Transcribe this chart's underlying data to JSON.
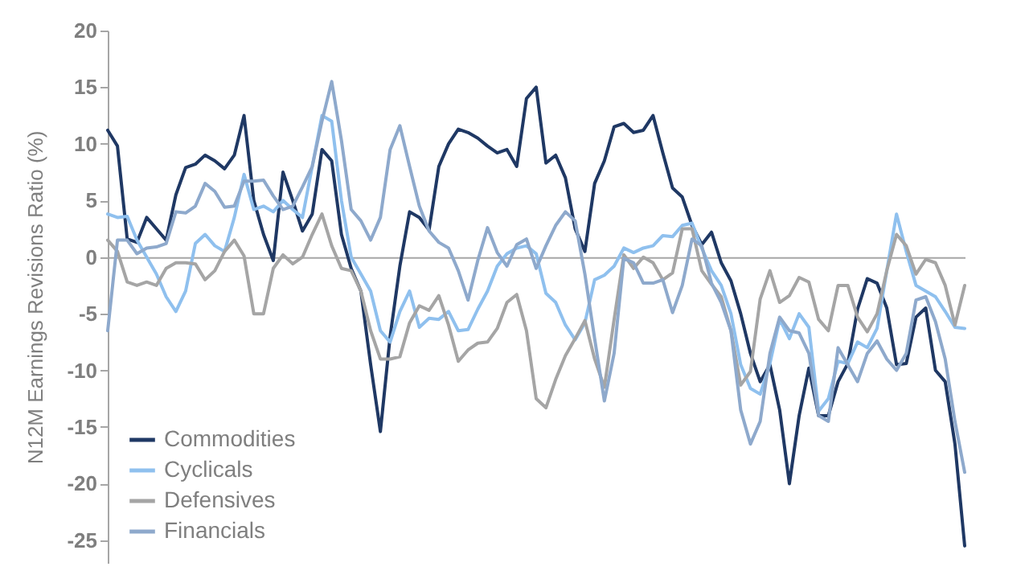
{
  "chart_data": {
    "type": "line",
    "ylabel": "N12M Earnings Revisions Ratio (%)",
    "categories": [
      null,
      null,
      null,
      null,
      null,
      null,
      null,
      null,
      null,
      null,
      null,
      null,
      null,
      null,
      null,
      null,
      null,
      null,
      null,
      null,
      null,
      null,
      null,
      null,
      null,
      null,
      null,
      null,
      null,
      null,
      null,
      null,
      null,
      null,
      null,
      null,
      null,
      null,
      null,
      null,
      null,
      null,
      null,
      null,
      null,
      null,
      null,
      null,
      null,
      null,
      null,
      null,
      null,
      null,
      null,
      null,
      null,
      null,
      null,
      null,
      null,
      null,
      null,
      null,
      null,
      null,
      null,
      null,
      null,
      null,
      null,
      null,
      null,
      null,
      null,
      null,
      null,
      null,
      null,
      null,
      null,
      null,
      null,
      null,
      null,
      null,
      null,
      null,
      null
    ],
    "series": [
      {
        "name": "Commodities",
        "color": "#1f3864",
        "values": [
          11.2,
          9.8,
          1.6,
          1.3,
          3.5,
          2.5,
          1.5,
          5.5,
          7.9,
          8.2,
          9,
          8.5,
          7.8,
          9,
          12.5,
          5,
          2,
          -0.3,
          7.5,
          5,
          2.3,
          3.8,
          9.5,
          8.5,
          2,
          -1,
          -3,
          -9.5,
          -15.4,
          -7,
          -0.8,
          4,
          3.5,
          2.4,
          8,
          10,
          11.3,
          11,
          10.5,
          9.8,
          9.2,
          9.5,
          8,
          14,
          15,
          8.3,
          9,
          7,
          2.5,
          0.5,
          6.5,
          8.5,
          11.5,
          11.8,
          11,
          11.2,
          12.5,
          9.2,
          6.1,
          5.3,
          2.8,
          1.1,
          2.2,
          -0.5,
          -2.1,
          -5,
          -8.5,
          -11,
          -9.5,
          -13.5,
          -20,
          -14,
          -9.8,
          -14,
          -14,
          -11,
          -9.4,
          -4.6,
          -1.9,
          -2.3,
          -4.5,
          -9.5,
          -9.4,
          -5.3,
          -4.5,
          -10,
          -11,
          -16.5,
          -25.5
        ]
      },
      {
        "name": "Cyclicals",
        "color": "#8fc0ee",
        "values": [
          3.8,
          3.5,
          3.6,
          1.5,
          0,
          -1.5,
          -3.5,
          -4.8,
          -3,
          1.2,
          2,
          1,
          0.5,
          3.5,
          7.3,
          4.2,
          4.5,
          4,
          5,
          4.2,
          3.5,
          8,
          12.5,
          12,
          5,
          0,
          -1.5,
          -3,
          -6.5,
          -7.5,
          -4.8,
          -3,
          -6.2,
          -5.4,
          -5.5,
          -4.8,
          -6.5,
          -6.4,
          -4.6,
          -3,
          -0.8,
          0.3,
          0.8,
          1,
          0.3,
          -3.2,
          -4,
          -6,
          -7.3,
          -5.8,
          -2,
          -1.6,
          -0.8,
          0.8,
          0.4,
          0.8,
          1,
          1.9,
          1.8,
          2.8,
          3,
          0.8,
          -1.2,
          -2.5,
          -5,
          -9.5,
          -11.6,
          -12.1,
          -9.4,
          -5.5,
          -7.2,
          -5,
          -6.2,
          -13.6,
          -12.5,
          -9.2,
          -9.4,
          -7.5,
          -8,
          -6.3,
          -1.2,
          3.8,
          0.5,
          -2.5,
          -3,
          -3.5,
          -4.8,
          -6.2,
          -6.3
        ]
      },
      {
        "name": "Defensives",
        "color": "#a5a5a5",
        "values": [
          1.5,
          0.5,
          -2.2,
          -2.5,
          -2.2,
          -2.5,
          -1,
          -0.5,
          -0.5,
          -0.6,
          -2,
          -1.2,
          0.5,
          1.5,
          0.1,
          -5,
          -5,
          -1,
          0.2,
          -0.6,
          0,
          2,
          3.8,
          1,
          -1,
          -1.2,
          -3,
          -6.5,
          -9,
          -9,
          -8.8,
          -5.8,
          -4.3,
          -4.7,
          -3.4,
          -6,
          -9.2,
          -8.2,
          -7.6,
          -7.5,
          -6.3,
          -4,
          -3.3,
          -6.5,
          -12.5,
          -13.3,
          -10.8,
          -8.7,
          -7.2,
          -5.6,
          -9,
          -11.5,
          -5.5,
          0.2,
          -1,
          0,
          -0.5,
          -2,
          -1.4,
          2.5,
          2.5,
          -1.2,
          -2.4,
          -3.5,
          -6.5,
          -11.3,
          -10.1,
          -3.7,
          -1.2,
          -4,
          -3.4,
          -1.8,
          -2.2,
          -5.5,
          -6.5,
          -2.5,
          -2.5,
          -5.3,
          -6.6,
          -5,
          -1.2,
          2,
          1,
          -1.5,
          -0.2,
          -0.5,
          -2.5,
          -6,
          -2.5
        ]
      },
      {
        "name": "Financials",
        "color": "#8ea9cc",
        "values": [
          -6.5,
          1.5,
          1.5,
          0.3,
          0.8,
          0.9,
          1.2,
          4,
          3.9,
          4.5,
          6.5,
          5.8,
          4.4,
          4.5,
          6.7,
          6.7,
          6.8,
          5.4,
          4.2,
          4.5,
          6.2,
          8,
          12,
          15.5,
          10.3,
          4.2,
          3.2,
          1.5,
          3.5,
          9.5,
          11.6,
          8,
          4.5,
          2.3,
          1.3,
          0.8,
          -1.2,
          -3.8,
          -0.3,
          2.6,
          0.4,
          -0.8,
          1.1,
          1.6,
          -1,
          1,
          2.8,
          4,
          3.2,
          -1.5,
          -7.2,
          -12.7,
          -8.5,
          -0.1,
          -0.5,
          -2.3,
          -2.3,
          -2,
          -4.9,
          -2.5,
          1.6,
          1,
          -2.3,
          -4,
          -6.5,
          -13.5,
          -16.5,
          -14.5,
          -8.5,
          -5.3,
          -6.5,
          -6.7,
          -8.5,
          -14,
          -14.5,
          -8,
          -9.5,
          -11,
          -8.5,
          -7.4,
          -9,
          -10,
          -8.5,
          -3.8,
          -3.5,
          -5.7,
          -9,
          -14.5,
          -19
        ]
      }
    ],
    "ylim": [
      -27,
      20
    ],
    "yticks": [
      -25,
      -20,
      -15,
      -10,
      -5,
      0,
      5,
      10,
      15,
      20
    ],
    "tick_labels": "y",
    "legend": "bottom left",
    "line_style": "solid"
  }
}
